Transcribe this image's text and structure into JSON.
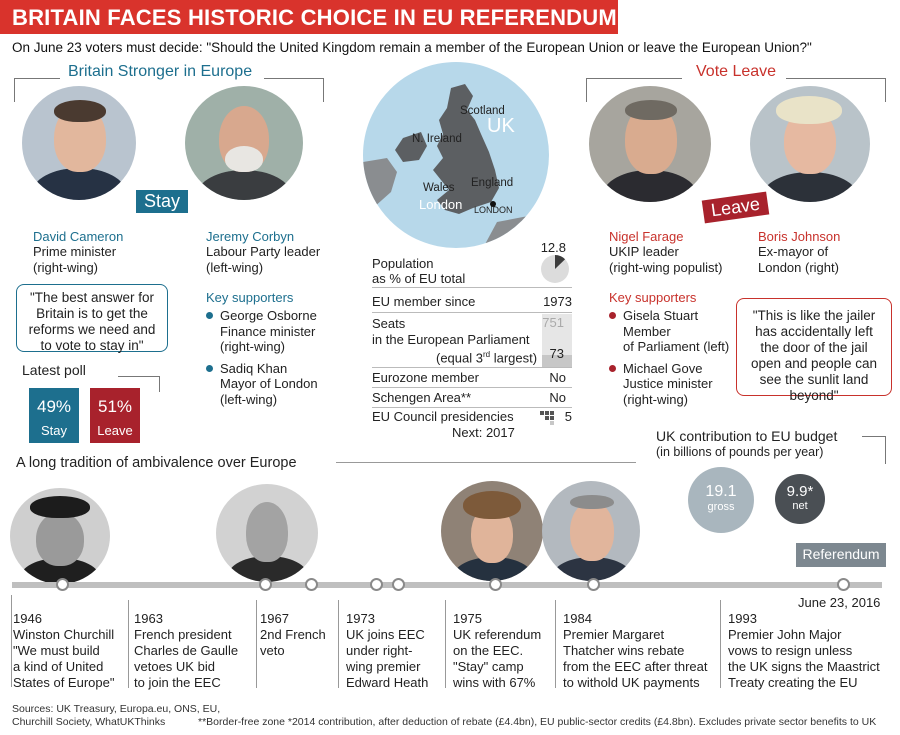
{
  "header": {
    "title": "BRITAIN FACES HISTORIC CHOICE IN EU REFERENDUM",
    "subtitle": "On June 23 voters must decide: \"Should the United Kingdom remain a member of the European Union or leave the European Union?\""
  },
  "stay": {
    "heading": "Britain Stronger in Europe",
    "tag": "Stay",
    "leaders": [
      {
        "name": "David Cameron",
        "role": "Prime minister",
        "wing": "(right-wing)"
      },
      {
        "name": "Jeremy Corbyn",
        "role": "Labour Party leader",
        "wing": "(left-wing)"
      }
    ],
    "quote": "\"The best answer for Britain is to get the reforms we need and to vote to stay in\"",
    "supporters_heading": "Key supporters",
    "supporters": [
      {
        "name": "George Osborne",
        "role": "Finance minister",
        "wing": "(right-wing)"
      },
      {
        "name": "Sadiq Khan",
        "role": "Mayor of London",
        "wing": "(left-wing)"
      }
    ]
  },
  "leave": {
    "heading": "Vote Leave",
    "tag": "Leave",
    "leaders": [
      {
        "name": "Nigel Farage",
        "role": "UKIP leader",
        "wing": "(right-wing populist)"
      },
      {
        "name": "Boris Johnson",
        "role": "Ex-mayor of",
        "wing": "London (right)"
      }
    ],
    "quote": "\"This is like the jailer has accidentally left the door of the jail open and people can see the sunlit land beyond\"",
    "supporters_heading": "Key supporters",
    "supporters": [
      {
        "name": "Gisela Stuart",
        "role": "Member",
        "role2": "of Parliament (left)"
      },
      {
        "name": "Michael Gove",
        "role": "Justice minister",
        "role2": "(right-wing)"
      }
    ]
  },
  "poll": {
    "title": "Latest poll",
    "stay_pct": "49%",
    "stay_label": "Stay",
    "leave_pct": "51%",
    "leave_label": "Leave",
    "stay_value": 49,
    "leave_value": 51,
    "stay_color": "#1d6f8e",
    "leave_color": "#a8222c"
  },
  "map": {
    "label_uk": "UK",
    "labels": [
      "Scotland",
      "N. Ireland",
      "England",
      "Wales",
      "London",
      "LONDON"
    ]
  },
  "uk_stats": {
    "population_label": "Population",
    "population_sub": "as % of EU total",
    "population_value": "12.8",
    "population_pct": 12.8,
    "member_label": "EU member since",
    "member_value": "1973",
    "seats_label": "Seats",
    "seats_sub": "in the European Parliament",
    "seats_total": "751",
    "seats_uk": "73",
    "seats_note_prefix": "(equal 3",
    "seats_note_sup": "rd",
    "seats_note_suffix": " largest)",
    "eurozone_label": "Eurozone member",
    "eurozone_value": "No",
    "schengen_label": "Schengen Area**",
    "schengen_value": "No",
    "council_label": "EU Council presidencies",
    "council_value": "5",
    "council_next": "Next: 2017"
  },
  "budget": {
    "title": "UK contribution to EU budget",
    "subtitle": "(in billions of pounds per year)",
    "gross_value": "19.1",
    "gross_label": "gross",
    "net_value": "9.9*",
    "net_label": "net",
    "gross_color": "#a9b6be",
    "net_color": "#4a4f54"
  },
  "timeline": {
    "heading": "A long tradition of ambivalence over Europe",
    "referendum_label": "Referendum",
    "referendum_date": "June 23, 2016",
    "events": [
      {
        "year": "1946",
        "lines": [
          "Winston Churchill",
          "\"We must build",
          "a kind of United",
          "States of Europe\""
        ]
      },
      {
        "year": "1963",
        "lines": [
          "French president",
          "Charles de Gaulle",
          "vetoes UK bid",
          "to join the EEC"
        ]
      },
      {
        "year": "1967",
        "lines": [
          "2nd French",
          "veto"
        ]
      },
      {
        "year": "1973",
        "lines": [
          "UK joins EEC",
          "under right-",
          "wing premier",
          "Edward Heath"
        ]
      },
      {
        "year": "1975",
        "lines": [
          "UK referendum",
          "on the EEC.",
          "\"Stay\" camp",
          "wins with 67%"
        ]
      },
      {
        "year": "1984",
        "lines": [
          "Premier Margaret",
          "Thatcher wins rebate",
          "from the EEC after threat",
          "to withold UK payments"
        ]
      },
      {
        "year": "1993",
        "lines": [
          "Premier John Major",
          "vows to resign unless",
          "the UK signs the Maastrict",
          "Treaty creating the EU"
        ]
      }
    ]
  },
  "footer": {
    "sources": "Sources: UK Treasury, Europa.eu, ONS, EU,",
    "sources2": "Churchill Society, WhatUKThinks",
    "notes": "**Border-free zone   *2014 contribution, after deduction of rebate (£4.4bn), EU public-sector credits (£4.8bn). Excludes private sector benefits to UK"
  }
}
